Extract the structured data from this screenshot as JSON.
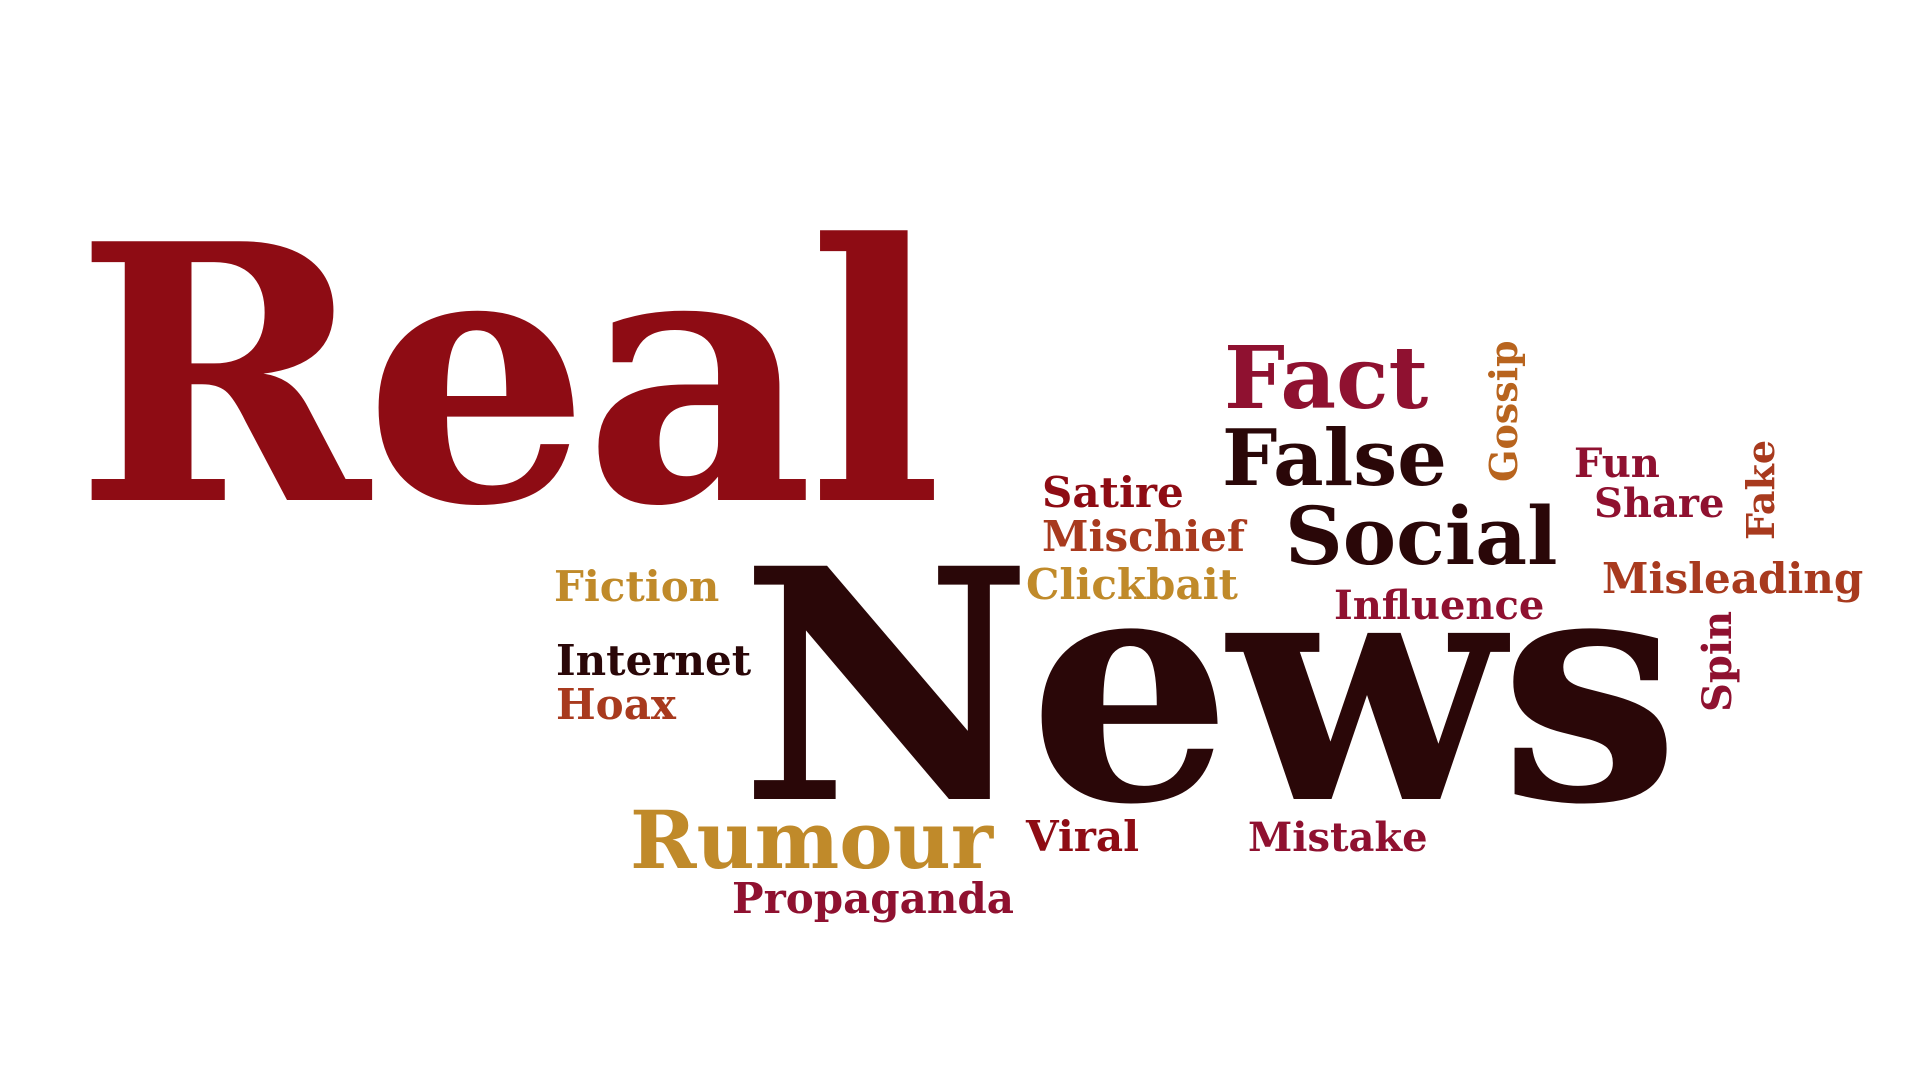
{
  "colors": {
    "background": "#ffffff",
    "crimson": "#8e0c14",
    "dark_maroon": "#2a0708",
    "magenta_red": "#8f1130",
    "rust": "#a83a1e",
    "gold": "#c08a2a",
    "dark_red": "#7a0f16"
  },
  "words": {
    "real": "Real",
    "news": "News",
    "fact": "Fact",
    "false": "False",
    "social": "Social",
    "gossip": "Gossip",
    "fun": "Fun",
    "share": "Share",
    "fake": "Fake",
    "satire": "Satire",
    "mischief": "Mischief",
    "clickbait": "Clickbait",
    "fiction": "Fiction",
    "influence": "Influence",
    "misleading": "Misleading",
    "spin": "Spin",
    "internet": "Internet",
    "hoax": "Hoax",
    "rumour": "Rumour",
    "viral": "Viral",
    "mistake": "Mistake",
    "propaganda": "Propaganda"
  },
  "word_colors": {
    "real": "#8e0c14",
    "news": "#2a0708",
    "fact": "#8f1130",
    "false": "#2a0708",
    "social": "#2a0708",
    "gossip": "#b8641e",
    "fun": "#8f1130",
    "share": "#8f1130",
    "fake": "#a83a1e",
    "satire": "#8e0c14",
    "mischief": "#a83a1e",
    "clickbait": "#c08a2a",
    "fiction": "#c08a2a",
    "influence": "#8f1130",
    "misleading": "#a83a1e",
    "spin": "#8f1130",
    "internet": "#2a0708",
    "hoax": "#a83a1e",
    "rumour": "#c08a2a",
    "viral": "#8e0c14",
    "mistake": "#8f1130",
    "propaganda": "#8f1130"
  }
}
